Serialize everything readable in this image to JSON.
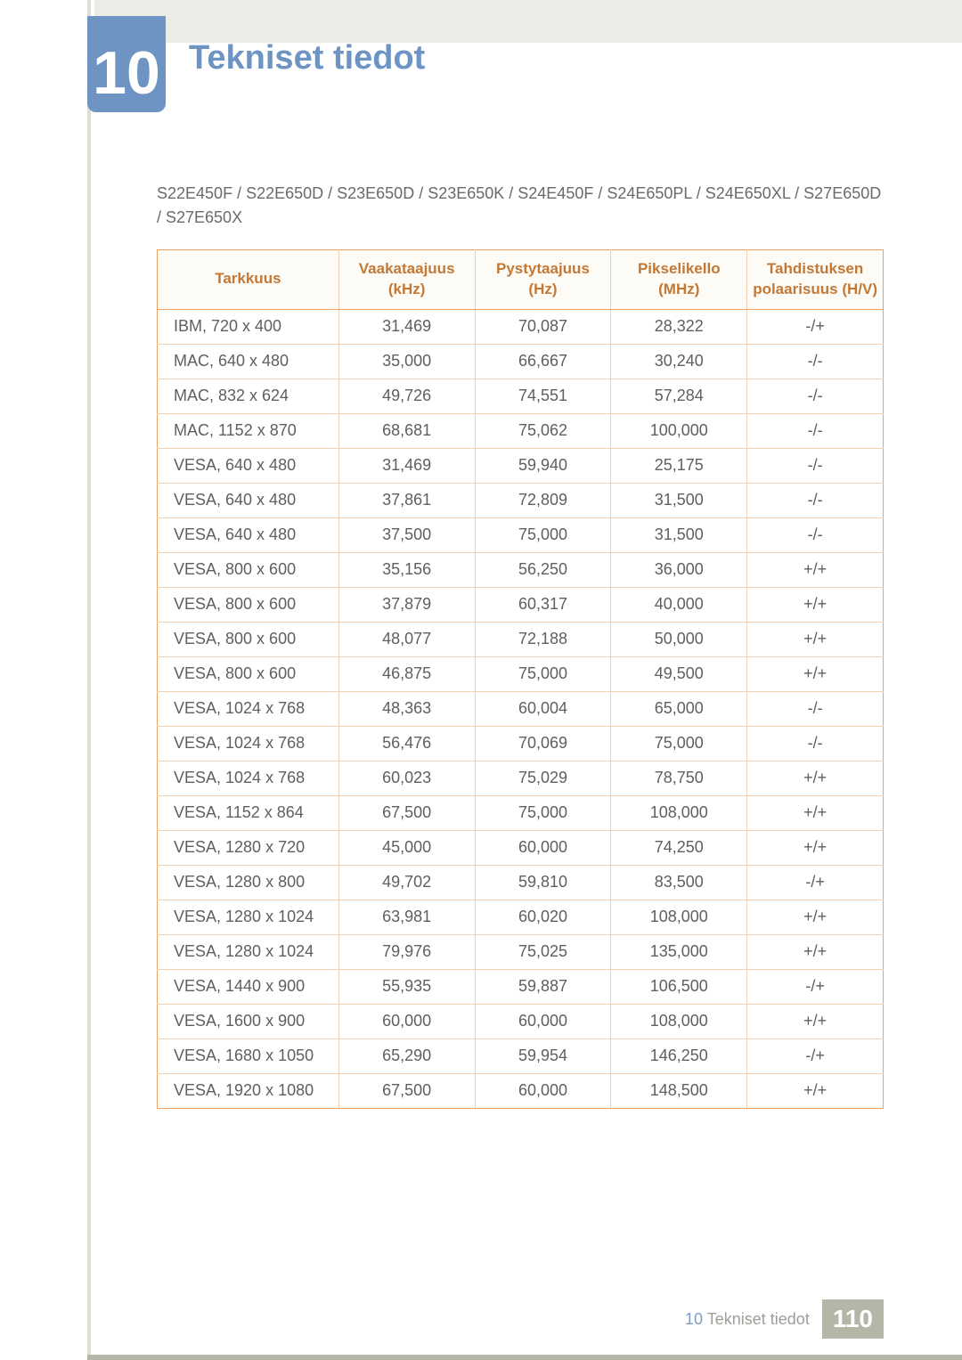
{
  "chapter": {
    "number": "10",
    "title": "Tekniset tiedot"
  },
  "models_line": "S22E450F / S22E650D / S23E650D / S23E650K / S24E450F / S24E650PL / S24E650XL / S27E650D / S27E650X",
  "table": {
    "headers": {
      "c1": "Tarkkuus",
      "c2": "Vaakataajuus (kHz)",
      "c3": "Pystytaajuus (Hz)",
      "c4": "Pikselikello (MHz)",
      "c5": "Tahdistuksen polaarisuus (H/V)"
    },
    "rows": [
      {
        "r": "IBM, 720 x 400",
        "h": "31,469",
        "v": "70,087",
        "p": "28,322",
        "s": "-/+"
      },
      {
        "r": "MAC, 640 x 480",
        "h": "35,000",
        "v": "66,667",
        "p": "30,240",
        "s": "-/-"
      },
      {
        "r": "MAC, 832 x 624",
        "h": "49,726",
        "v": "74,551",
        "p": "57,284",
        "s": "-/-"
      },
      {
        "r": "MAC, 1152 x 870",
        "h": "68,681",
        "v": "75,062",
        "p": "100,000",
        "s": "-/-"
      },
      {
        "r": "VESA, 640 x 480",
        "h": "31,469",
        "v": "59,940",
        "p": "25,175",
        "s": "-/-"
      },
      {
        "r": "VESA, 640 x 480",
        "h": "37,861",
        "v": "72,809",
        "p": "31,500",
        "s": "-/-"
      },
      {
        "r": "VESA, 640 x 480",
        "h": "37,500",
        "v": "75,000",
        "p": "31,500",
        "s": "-/-"
      },
      {
        "r": "VESA, 800 x 600",
        "h": "35,156",
        "v": "56,250",
        "p": "36,000",
        "s": "+/+"
      },
      {
        "r": "VESA, 800 x 600",
        "h": "37,879",
        "v": "60,317",
        "p": "40,000",
        "s": "+/+"
      },
      {
        "r": "VESA, 800 x 600",
        "h": "48,077",
        "v": "72,188",
        "p": "50,000",
        "s": "+/+"
      },
      {
        "r": "VESA, 800 x 600",
        "h": "46,875",
        "v": "75,000",
        "p": "49,500",
        "s": "+/+"
      },
      {
        "r": "VESA, 1024 x 768",
        "h": "48,363",
        "v": "60,004",
        "p": "65,000",
        "s": "-/-"
      },
      {
        "r": "VESA, 1024 x 768",
        "h": "56,476",
        "v": "70,069",
        "p": "75,000",
        "s": "-/-"
      },
      {
        "r": "VESA, 1024 x 768",
        "h": "60,023",
        "v": "75,029",
        "p": "78,750",
        "s": "+/+"
      },
      {
        "r": "VESA, 1152 x 864",
        "h": "67,500",
        "v": "75,000",
        "p": "108,000",
        "s": "+/+"
      },
      {
        "r": "VESA, 1280 x 720",
        "h": "45,000",
        "v": "60,000",
        "p": "74,250",
        "s": "+/+"
      },
      {
        "r": "VESA, 1280 x 800",
        "h": "49,702",
        "v": "59,810",
        "p": "83,500",
        "s": "-/+"
      },
      {
        "r": "VESA, 1280 x 1024",
        "h": "63,981",
        "v": "60,020",
        "p": "108,000",
        "s": "+/+"
      },
      {
        "r": "VESA, 1280 x 1024",
        "h": "79,976",
        "v": "75,025",
        "p": "135,000",
        "s": "+/+"
      },
      {
        "r": "VESA, 1440 x 900",
        "h": "55,935",
        "v": "59,887",
        "p": "106,500",
        "s": "-/+"
      },
      {
        "r": "VESA, 1600 x 900",
        "h": "60,000",
        "v": "60,000",
        "p": "108,000",
        "s": "+/+"
      },
      {
        "r": "VESA, 1680 x 1050",
        "h": "65,290",
        "v": "59,954",
        "p": "146,250",
        "s": "-/+"
      },
      {
        "r": "VESA, 1920 x 1080",
        "h": "67,500",
        "v": "60,000",
        "p": "148,500",
        "s": "+/+"
      }
    ]
  },
  "footer": {
    "chapter_ref": "10",
    "chapter_title": "Tekniset tiedot",
    "page_number": "110"
  },
  "colors": {
    "accent_blue": "#6e94c3",
    "header_text": "#c37836",
    "border_strong": "#ec9f5f",
    "border_soft": "#f3d0b1",
    "page_badge_bg": "#b4b7a8",
    "top_bar_bg": "#ebece5"
  }
}
